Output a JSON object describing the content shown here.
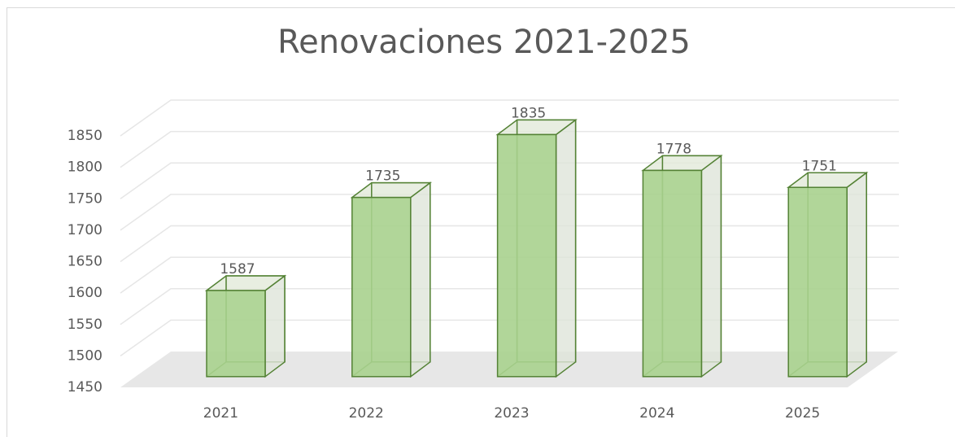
{
  "chart_data": {
    "type": "bar3d",
    "title": "Renovaciones 2021-2025",
    "categories": [
      "2021",
      "2022",
      "2023",
      "2024",
      "2025"
    ],
    "values": [
      1587,
      1735,
      1835,
      1778,
      1751
    ],
    "color": "#a9d18e",
    "ylim": [
      1450,
      1850
    ],
    "yticks": [
      1450,
      1500,
      1550,
      1600,
      1650,
      1700,
      1750,
      1800,
      1850
    ],
    "grid": true
  }
}
